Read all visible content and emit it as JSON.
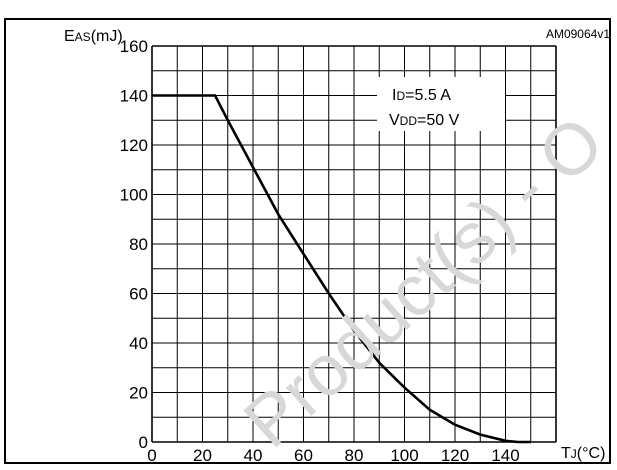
{
  "chart_data": {
    "type": "line",
    "title": "",
    "doc_code": "AM09064v1",
    "ylabel": {
      "main": "E",
      "sub": "AS",
      "unit": "(mJ)"
    },
    "xlabel": {
      "main": "T",
      "sub": "J",
      "unit": "(°C)"
    },
    "xlim": [
      0,
      160
    ],
    "ylim": [
      0,
      160
    ],
    "x_ticks": [
      0,
      20,
      40,
      60,
      80,
      100,
      120,
      140
    ],
    "y_ticks": [
      0,
      20,
      40,
      60,
      80,
      100,
      120,
      140,
      160
    ],
    "grid": true,
    "annotations": [
      {
        "main": "I",
        "sub": "D",
        "rest": "=5.5 A"
      },
      {
        "main": "V",
        "sub": "DD",
        "rest": "=50 V"
      }
    ],
    "series": [
      {
        "x": [
          0,
          25,
          30,
          40,
          50,
          60,
          70,
          80,
          90,
          100,
          110,
          120,
          130,
          140,
          145,
          150
        ],
        "y": [
          140,
          140,
          130,
          111,
          92,
          76,
          60,
          45,
          32,
          22,
          13,
          7,
          3,
          0.5,
          0,
          0
        ]
      }
    ]
  },
  "watermark": "Product(s) - O"
}
